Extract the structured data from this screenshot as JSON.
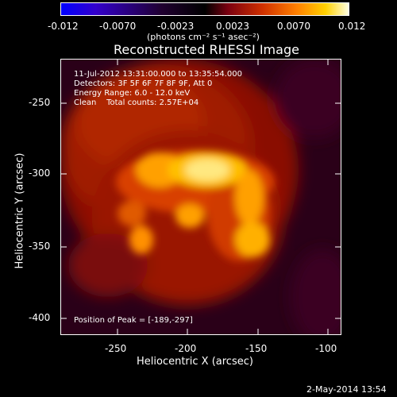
{
  "colorbar": {
    "ticks": [
      "-0.012",
      "-0.0070",
      "-0.0023",
      "0.0023",
      "0.0070",
      "0.012"
    ],
    "unit_label": "(photons cm⁻² s⁻¹ asec⁻²)"
  },
  "title": "Reconstructed RHESSI Image",
  "info": {
    "line1": "11-Jul-2012 13:31:00.000 to 13:35:54.000",
    "line2": "Detectors: 3F 5F 6F 7F 8F 9F, Att 0",
    "line3": "Energy Range: 6.0 - 12.0 keV",
    "line4": "Clean    Total counts: 2.57E+04"
  },
  "peak_label": "Position of Peak = [-189,-297]",
  "axes": {
    "xlabel": "Heliocentric X (arcsec)",
    "ylabel": "Heliocentric Y (arcsec)",
    "xticks": [
      "-250",
      "-200",
      "-150",
      "-100"
    ],
    "yticks": [
      "-250",
      "-300",
      "-350",
      "-400"
    ]
  },
  "footer_date": "2-May-2014 13:54",
  "colors": {
    "background": "#000000",
    "text": "#ffffff"
  }
}
